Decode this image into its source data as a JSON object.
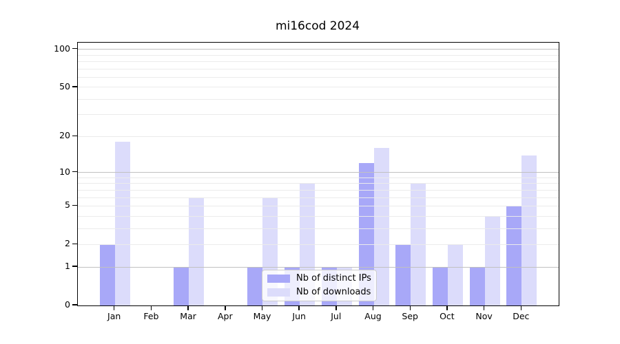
{
  "chart_data": {
    "type": "bar",
    "title": "mi16cod 2024",
    "categories": [
      "Jan 2024",
      "Feb 2024",
      "Mar 2024",
      "Apr 2024",
      "May 2024",
      "Jun 2024",
      "Jul 2024",
      "Aug 2024",
      "Sep 2024",
      "Oct 2024",
      "Nov 2024",
      "Dec 2024"
    ],
    "series": [
      {
        "name": "Nb of distinct IPs",
        "color": "#a8a8f8",
        "values": [
          2,
          0,
          1,
          0,
          1,
          1,
          1,
          12,
          2,
          1,
          1,
          5
        ]
      },
      {
        "name": "Nb of downloads",
        "color": "#dcdcfb",
        "values": [
          18,
          0,
          6,
          0,
          6,
          8,
          1,
          16,
          8,
          2,
          4,
          14
        ]
      }
    ],
    "yscale": "log(1+v)",
    "ylim": [
      0,
      113
    ],
    "yticks": [
      0,
      1,
      2,
      5,
      10,
      20,
      50,
      100
    ],
    "major_gridlines": [
      1,
      10,
      100
    ],
    "minor_gridlines": [
      2,
      3,
      4,
      5,
      6,
      7,
      8,
      9,
      20,
      30,
      40,
      50,
      60,
      70,
      80,
      90
    ],
    "grid": "horizontal, major + minor, drawn over bars",
    "legend_position": "lower center inside plot",
    "colors": {
      "major_grid": "#c0c0c0",
      "minor_grid": "#ebebeb",
      "axis": "#000000",
      "background": "#ffffff"
    }
  }
}
